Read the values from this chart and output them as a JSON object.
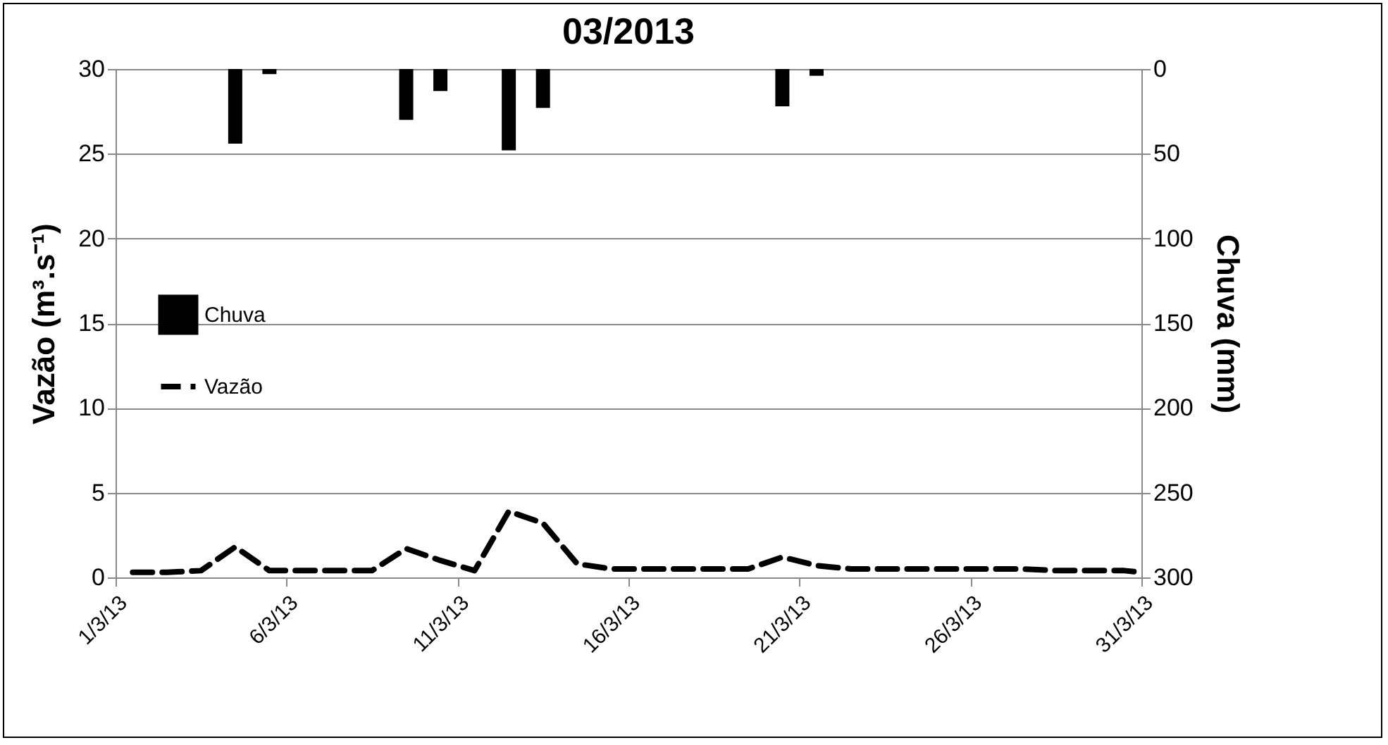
{
  "chart_data": {
    "type": "bar",
    "title": "03/2013",
    "ylabel": "Vazão (m³.s⁻¹)",
    "y2label": "Chuva (mm)",
    "xlim": [
      "2013-03-01",
      "2013-03-31"
    ],
    "xticks": [
      {
        "value": "2013-03-01",
        "label": "1/3/13"
      },
      {
        "value": "2013-03-06",
        "label": "6/3/13"
      },
      {
        "value": "2013-03-11",
        "label": "11/3/13"
      },
      {
        "value": "2013-03-16",
        "label": "16/3/13"
      },
      {
        "value": "2013-03-21",
        "label": "21/3/13"
      },
      {
        "value": "2013-03-26",
        "label": "26/3/13"
      },
      {
        "value": "2013-03-31",
        "label": "31/3/13"
      }
    ],
    "ylim": [
      0,
      30
    ],
    "yticks": [
      0,
      5,
      10,
      15,
      20,
      25,
      30
    ],
    "y2lim": [
      300,
      0
    ],
    "y2ticks": [
      0,
      50,
      100,
      150,
      200,
      250,
      300
    ],
    "grid": "y",
    "legend": "left",
    "series": [
      {
        "name": "Chuva",
        "axis": "y2",
        "color": "#000000",
        "x": [
          "2013-03-04T12:00",
          "2013-03-05T12:00",
          "2013-03-09T12:00",
          "2013-03-10T12:00",
          "2013-03-12T12:00",
          "2013-03-13T12:00",
          "2013-03-20T12:00",
          "2013-03-21T12:00"
        ],
        "values": [
          44,
          3,
          30,
          13,
          48,
          23,
          22,
          4
        ]
      },
      {
        "name": "Vazão",
        "type": "line",
        "axis": "y",
        "color": "#000000",
        "line_style": "dashed",
        "marker": "none",
        "x": [
          "2013-03-01T12:00",
          "2013-03-02T12:00",
          "2013-03-03T12:00",
          "2013-03-04T12:00",
          "2013-03-05T12:00",
          "2013-03-06T12:00",
          "2013-03-07T12:00",
          "2013-03-08T12:00",
          "2013-03-09T12:00",
          "2013-03-10T12:00",
          "2013-03-11T12:00",
          "2013-03-12T12:00",
          "2013-03-13T12:00",
          "2013-03-14T12:00",
          "2013-03-15T12:00",
          "2013-03-16T12:00",
          "2013-03-17T12:00",
          "2013-03-18T12:00",
          "2013-03-19T12:00",
          "2013-03-20T12:00",
          "2013-03-21T12:00",
          "2013-03-22T12:00",
          "2013-03-23T12:00",
          "2013-03-24T12:00",
          "2013-03-25T12:00",
          "2013-03-26T12:00",
          "2013-03-27T12:00",
          "2013-03-28T12:00",
          "2013-03-29T12:00",
          "2013-03-30T12:00",
          "2013-03-31"
        ],
        "values": [
          0.3,
          0.3,
          0.4,
          1.8,
          0.4,
          0.4,
          0.4,
          0.4,
          1.7,
          1.0,
          0.4,
          3.9,
          3.2,
          0.8,
          0.5,
          0.5,
          0.5,
          0.5,
          0.5,
          1.2,
          0.7,
          0.5,
          0.5,
          0.5,
          0.5,
          0.5,
          0.5,
          0.4,
          0.4,
          0.4,
          0.3
        ]
      }
    ]
  }
}
